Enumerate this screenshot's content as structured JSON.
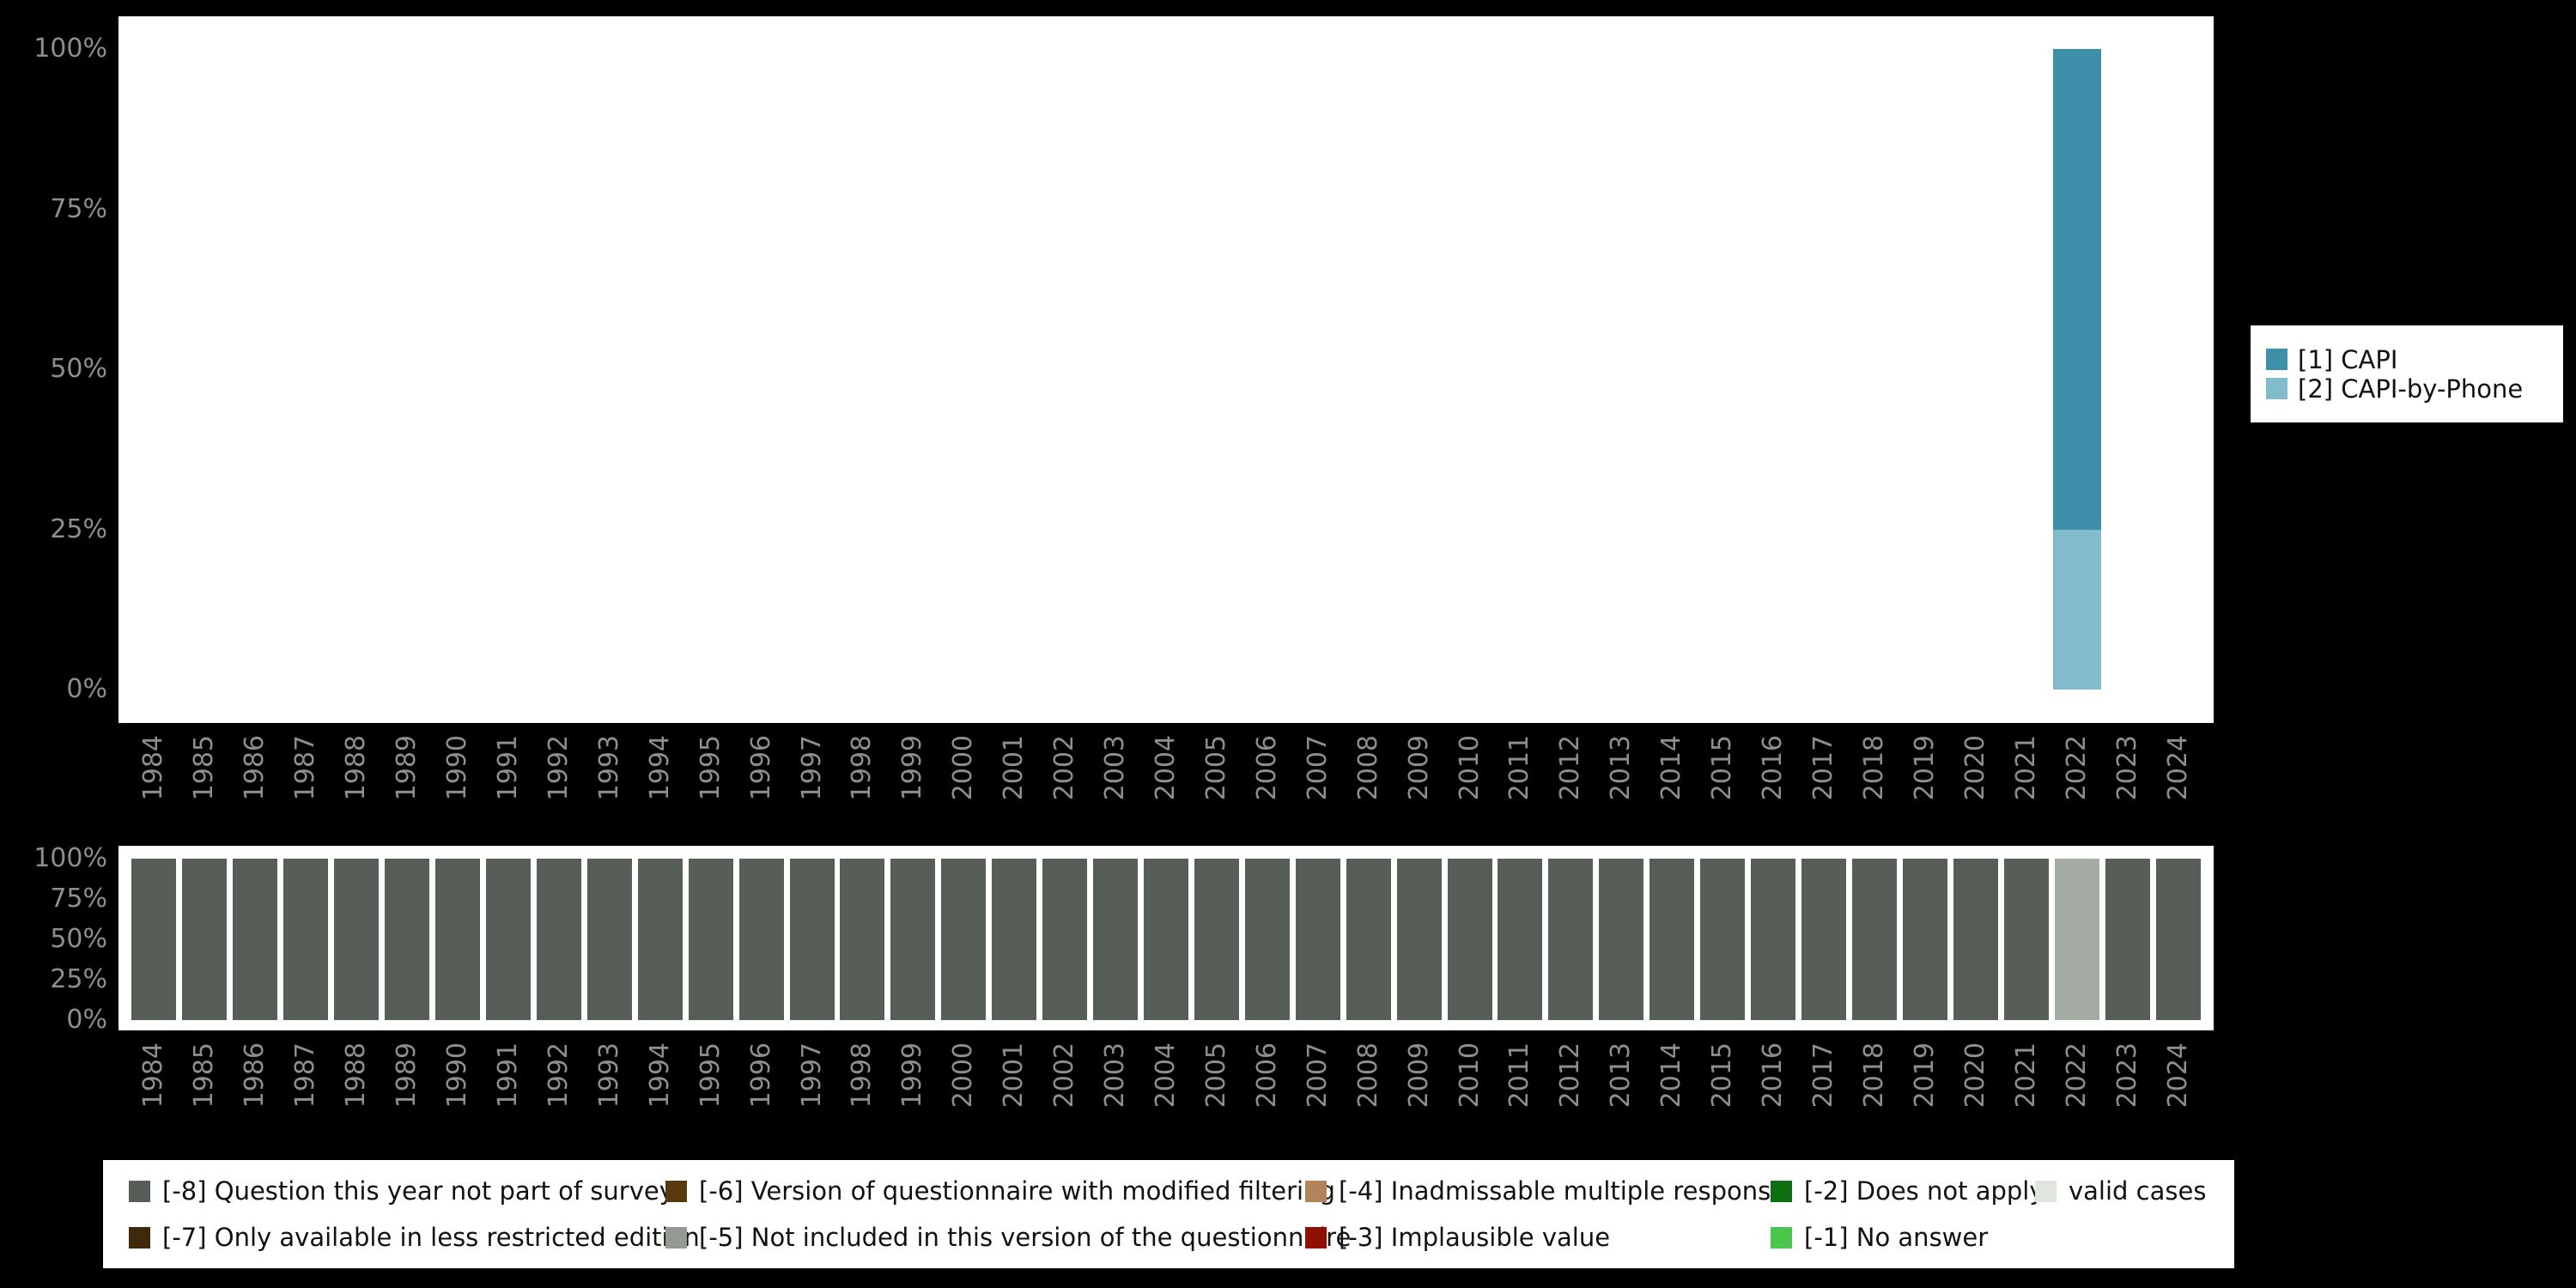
{
  "page": {
    "background": "#000000"
  },
  "top_chart_legend": {
    "items": [
      {
        "label": "[1] CAPI",
        "color": "#3e8fa9"
      },
      {
        "label": "[2] CAPI-by-Phone",
        "color": "#80bccb"
      }
    ]
  },
  "bottom_legend": {
    "items": [
      {
        "label": "[-8] Question this year not part of survey",
        "color": "#565e57"
      },
      {
        "label": "[-7] Only available in less restricted edition",
        "color": "#40290a"
      },
      {
        "label": "[-6] Version of questionnaire with modified filtering",
        "color": "#5a380e"
      },
      {
        "label": "[-5] Not included in this version of the questionnaire",
        "color": "#929a91"
      },
      {
        "label": "[-4] Inadmissable multiple response",
        "color": "#b3835a"
      },
      {
        "label": "[-3] Implausible value",
        "color": "#8f1000"
      },
      {
        "label": "[-2] Does not apply",
        "color": "#0d6e12"
      },
      {
        "label": "[-1] No answer",
        "color": "#49c64b"
      },
      {
        "label": "valid cases",
        "color": "#e0e5df"
      }
    ]
  },
  "chart_data": [
    {
      "type": "bar",
      "stacked": true,
      "title": "",
      "xlabel": "",
      "ylabel": "",
      "ylim": [
        0,
        100
      ],
      "yticks": [
        0,
        25,
        50,
        75,
        100
      ],
      "ytick_format": "percent",
      "legend_position": "right",
      "categories": [
        "1984",
        "1985",
        "1986",
        "1987",
        "1988",
        "1989",
        "1990",
        "1991",
        "1992",
        "1993",
        "1994",
        "1995",
        "1996",
        "1997",
        "1998",
        "1999",
        "2000",
        "2001",
        "2002",
        "2003",
        "2004",
        "2005",
        "2006",
        "2007",
        "2008",
        "2009",
        "2010",
        "2011",
        "2012",
        "2013",
        "2014",
        "2015",
        "2016",
        "2017",
        "2018",
        "2019",
        "2020",
        "2021",
        "2022",
        "2023",
        "2024"
      ],
      "series": [
        {
          "name": "[1] CAPI",
          "color": "#3e8fa9",
          "values": [
            0,
            0,
            0,
            0,
            0,
            0,
            0,
            0,
            0,
            0,
            0,
            0,
            0,
            0,
            0,
            0,
            0,
            0,
            0,
            0,
            0,
            0,
            0,
            0,
            0,
            0,
            0,
            0,
            0,
            0,
            0,
            0,
            0,
            0,
            0,
            0,
            0,
            0,
            75,
            0,
            0
          ]
        },
        {
          "name": "[2] CAPI-by-Phone",
          "color": "#80bccb",
          "values": [
            0,
            0,
            0,
            0,
            0,
            0,
            0,
            0,
            0,
            0,
            0,
            0,
            0,
            0,
            0,
            0,
            0,
            0,
            0,
            0,
            0,
            0,
            0,
            0,
            0,
            0,
            0,
            0,
            0,
            0,
            0,
            0,
            0,
            0,
            0,
            0,
            0,
            0,
            25,
            0,
            0
          ]
        }
      ]
    },
    {
      "type": "bar",
      "stacked": true,
      "title": "",
      "xlabel": "",
      "ylabel": "",
      "ylim": [
        0,
        100
      ],
      "yticks": [
        0,
        25,
        50,
        75,
        100
      ],
      "ytick_format": "percent",
      "legend_position": "bottom",
      "categories": [
        "1984",
        "1985",
        "1986",
        "1987",
        "1988",
        "1989",
        "1990",
        "1991",
        "1992",
        "1993",
        "1994",
        "1995",
        "1996",
        "1997",
        "1998",
        "1999",
        "2000",
        "2001",
        "2002",
        "2003",
        "2004",
        "2005",
        "2006",
        "2007",
        "2008",
        "2009",
        "2010",
        "2011",
        "2012",
        "2013",
        "2014",
        "2015",
        "2016",
        "2017",
        "2018",
        "2019",
        "2020",
        "2021",
        "2022",
        "2023",
        "2024"
      ],
      "series": [
        {
          "name": "[-8] Question this year not part of survey",
          "color": "#565e57",
          "values": [
            100,
            100,
            100,
            100,
            100,
            100,
            100,
            100,
            100,
            100,
            100,
            100,
            100,
            100,
            100,
            100,
            100,
            100,
            100,
            100,
            100,
            100,
            100,
            100,
            100,
            100,
            100,
            100,
            100,
            100,
            100,
            100,
            100,
            100,
            100,
            100,
            100,
            100,
            0,
            100,
            100
          ]
        },
        {
          "name": "valid cases",
          "color": "#a4aba2",
          "values": [
            0,
            0,
            0,
            0,
            0,
            0,
            0,
            0,
            0,
            0,
            0,
            0,
            0,
            0,
            0,
            0,
            0,
            0,
            0,
            0,
            0,
            0,
            0,
            0,
            0,
            0,
            0,
            0,
            0,
            0,
            0,
            0,
            0,
            0,
            0,
            0,
            0,
            0,
            100,
            0,
            0
          ]
        }
      ]
    }
  ]
}
